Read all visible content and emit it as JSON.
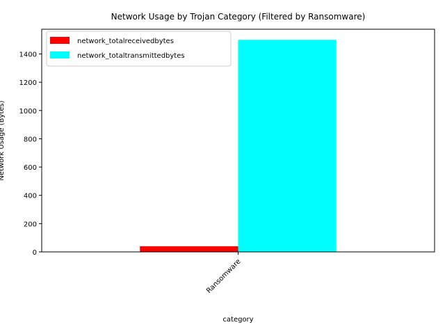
{
  "chart_data": {
    "type": "bar",
    "title": "Network Usage by Trojan Category (Filtered by Ransomware)",
    "xlabel": "category",
    "ylabel": "Network Usage (Bytes)",
    "categories": [
      "Ransomware"
    ],
    "series": [
      {
        "name": "network_totalreceivedbytes",
        "values": [
          40
        ],
        "color": "#ff0000"
      },
      {
        "name": "network_totaltransmittedbytes",
        "values": [
          1500
        ],
        "color": "#00ffff"
      }
    ],
    "ylim": [
      0,
      1575
    ],
    "yticks": [
      0,
      200,
      400,
      600,
      800,
      1000,
      1200,
      1400
    ],
    "legend": "top-left",
    "grid": false
  }
}
